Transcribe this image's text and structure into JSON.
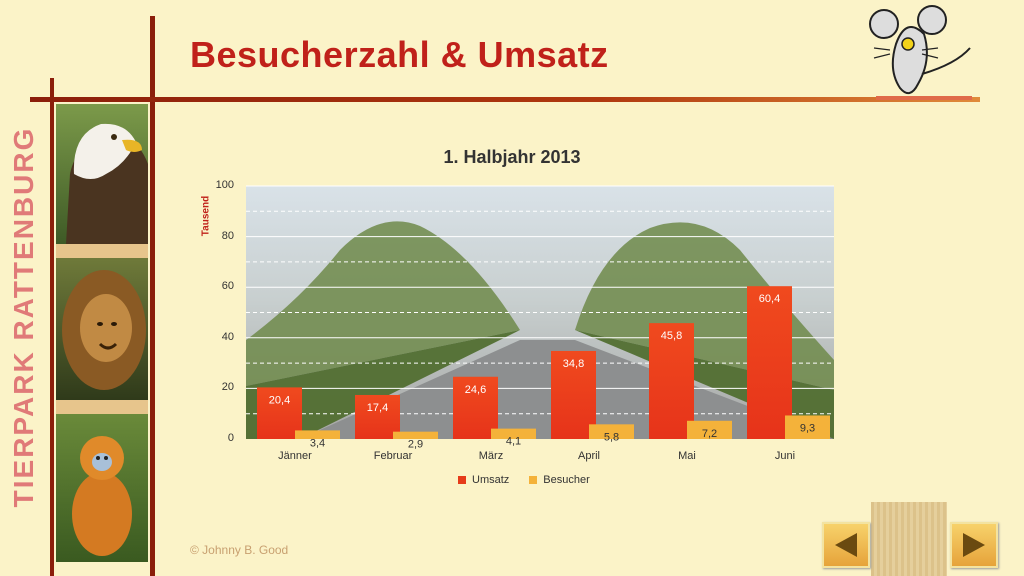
{
  "header": {
    "title": "Besucherzahl & Umsatz"
  },
  "sidebar": {
    "brand": "TIERPARK RATTENBURG"
  },
  "footer": {
    "copyright": "© Johnny B. Good"
  },
  "colors": {
    "accent": "#8b1e0a",
    "title": "#c0211a",
    "umsatz": "#e63b1a",
    "besucher": "#f4b23a"
  },
  "chart_data": {
    "type": "bar",
    "title": "1. Halbjahr 2013",
    "ylabel": "Tausend",
    "xlabel": "",
    "categories": [
      "Jänner",
      "Februar",
      "März",
      "April",
      "Mai",
      "Juni"
    ],
    "series": [
      {
        "name": "Umsatz",
        "values": [
          20.4,
          17.4,
          24.6,
          34.8,
          45.8,
          60.4
        ],
        "labels": [
          "20,4",
          "17,4",
          "24,6",
          "34,8",
          "45,8",
          "60,4"
        ]
      },
      {
        "name": "Besucher",
        "values": [
          3.4,
          2.9,
          4.1,
          5.8,
          7.2,
          9.3
        ],
        "labels": [
          "3,4",
          "2,9",
          "4,1",
          "5,8",
          "7,2",
          "9,3"
        ]
      }
    ],
    "ylim": [
      0,
      100
    ],
    "yticks": [
      "0",
      "20",
      "40",
      "60",
      "80",
      "100"
    ],
    "legend_position": "bottom",
    "grid": true
  }
}
